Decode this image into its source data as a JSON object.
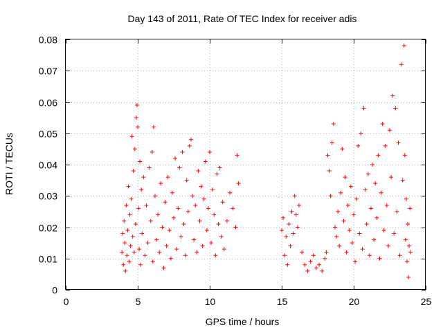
{
  "chart_data": {
    "type": "scatter",
    "title": "Day 143 of 2011, Rate Of TEC Index for receiver adis",
    "xlabel": "GPS time / hours",
    "ylabel": "ROTI / TECUs",
    "xlim": [
      0,
      25
    ],
    "ylim": [
      0,
      0.08
    ],
    "xticks": [
      0,
      5,
      10,
      15,
      20,
      25
    ],
    "yticks": [
      0,
      0.01,
      0.02,
      0.03,
      0.04,
      0.05,
      0.06,
      0.07,
      0.08
    ],
    "xtick_labels": [
      "0",
      "5",
      "10",
      "15",
      "20",
      "25"
    ],
    "ytick_labels": [
      "0",
      "0.01",
      "0.02",
      "0.03",
      "0.04",
      "0.05",
      "0.06",
      "0.07",
      "0.08"
    ],
    "grid": true,
    "marker": "+",
    "series_color": "#ff0000",
    "series": [
      {
        "name": "ROTI",
        "points": [
          [
            3.9,
            0.012
          ],
          [
            3.95,
            0.018
          ],
          [
            4.0,
            0.008
          ],
          [
            4.05,
            0.022
          ],
          [
            4.1,
            0.015
          ],
          [
            4.15,
            0.006
          ],
          [
            4.2,
            0.027
          ],
          [
            4.25,
            0.011
          ],
          [
            4.3,
            0.019
          ],
          [
            4.35,
            0.033
          ],
          [
            4.4,
            0.009
          ],
          [
            4.45,
            0.024
          ],
          [
            4.5,
            0.014
          ],
          [
            4.55,
            0.029
          ],
          [
            4.6,
            0.049
          ],
          [
            4.65,
            0.017
          ],
          [
            4.7,
            0.038
          ],
          [
            4.75,
            0.012
          ],
          [
            4.8,
            0.045
          ],
          [
            4.85,
            0.021
          ],
          [
            4.9,
            0.055
          ],
          [
            4.95,
            0.059
          ],
          [
            5.0,
            0.052
          ],
          [
            5.05,
            0.026
          ],
          [
            5.1,
            0.013
          ],
          [
            5.15,
            0.041
          ],
          [
            5.2,
            0.008
          ],
          [
            5.25,
            0.032
          ],
          [
            5.3,
            0.018
          ],
          [
            5.4,
            0.036
          ],
          [
            5.5,
            0.011
          ],
          [
            5.6,
            0.027
          ],
          [
            5.7,
            0.015
          ],
          [
            5.8,
            0.039
          ],
          [
            5.9,
            0.022
          ],
          [
            6.0,
            0.044
          ],
          [
            6.05,
            0.009
          ],
          [
            6.1,
            0.052
          ],
          [
            6.2,
            0.03
          ],
          [
            6.3,
            0.016
          ],
          [
            6.4,
            0.024
          ],
          [
            6.5,
            0.012
          ],
          [
            6.6,
            0.034
          ],
          [
            6.7,
            0.02
          ],
          [
            6.8,
            0.007
          ],
          [
            6.9,
            0.028
          ],
          [
            7.0,
            0.014
          ],
          [
            7.1,
            0.036
          ],
          [
            7.2,
            0.019
          ],
          [
            7.3,
            0.01
          ],
          [
            7.4,
            0.031
          ],
          [
            7.5,
            0.023
          ],
          [
            7.6,
            0.042
          ],
          [
            7.7,
            0.013
          ],
          [
            7.8,
            0.026
          ],
          [
            7.9,
            0.039
          ],
          [
            8.0,
            0.017
          ],
          [
            8.1,
            0.044
          ],
          [
            8.2,
            0.021
          ],
          [
            8.3,
            0.011
          ],
          [
            8.4,
            0.035
          ],
          [
            8.5,
            0.025
          ],
          [
            8.6,
            0.046
          ],
          [
            8.7,
            0.048
          ],
          [
            8.8,
            0.03
          ],
          [
            8.9,
            0.016
          ],
          [
            9.0,
            0.027
          ],
          [
            9.1,
            0.012
          ],
          [
            9.2,
            0.038
          ],
          [
            9.3,
            0.022
          ],
          [
            9.4,
            0.033
          ],
          [
            9.5,
            0.014
          ],
          [
            9.6,
            0.029
          ],
          [
            9.7,
            0.041
          ],
          [
            9.8,
            0.019
          ],
          [
            9.9,
            0.026
          ],
          [
            10.0,
            0.044
          ],
          [
            10.1,
            0.015
          ],
          [
            10.2,
            0.032
          ],
          [
            10.3,
            0.024
          ],
          [
            10.4,
            0.011
          ],
          [
            10.5,
            0.037
          ],
          [
            10.6,
            0.021
          ],
          [
            10.7,
            0.039
          ],
          [
            10.8,
            0.017
          ],
          [
            10.9,
            0.028
          ],
          [
            11.0,
            0.013
          ],
          [
            11.2,
            0.022
          ],
          [
            11.4,
            0.031
          ],
          [
            11.6,
            0.026
          ],
          [
            11.8,
            0.02
          ],
          [
            11.9,
            0.043
          ],
          [
            12.0,
            0.034
          ],
          [
            15.0,
            0.019
          ],
          [
            15.1,
            0.023
          ],
          [
            15.2,
            0.011
          ],
          [
            15.3,
            0.017
          ],
          [
            15.4,
            0.008
          ],
          [
            15.5,
            0.021
          ],
          [
            15.6,
            0.014
          ],
          [
            15.7,
            0.025
          ],
          [
            15.8,
            0.018
          ],
          [
            15.9,
            0.03
          ],
          [
            16.0,
            0.024
          ],
          [
            16.1,
            0.02
          ],
          [
            16.2,
            0.027
          ],
          [
            16.4,
            0.012
          ],
          [
            16.6,
            0.008
          ],
          [
            16.8,
            0.006
          ],
          [
            17.0,
            0.009
          ],
          [
            17.2,
            0.011
          ],
          [
            17.4,
            0.007
          ],
          [
            17.6,
            0.008
          ],
          [
            17.8,
            0.006
          ],
          [
            18.0,
            0.01
          ],
          [
            18.1,
            0.012
          ],
          [
            18.2,
            0.043
          ],
          [
            18.3,
            0.038
          ],
          [
            18.4,
            0.03
          ],
          [
            18.5,
            0.047
          ],
          [
            18.6,
            0.053
          ],
          [
            18.7,
            0.02
          ],
          [
            18.8,
            0.017
          ],
          [
            18.9,
            0.025
          ],
          [
            19.0,
            0.014
          ],
          [
            19.1,
            0.031
          ],
          [
            19.2,
            0.045
          ],
          [
            19.3,
            0.022
          ],
          [
            19.4,
            0.036
          ],
          [
            19.5,
            0.012
          ],
          [
            19.6,
            0.027
          ],
          [
            19.7,
            0.019
          ],
          [
            19.8,
            0.033
          ],
          [
            19.9,
            0.015
          ],
          [
            20.0,
            0.024
          ],
          [
            20.1,
            0.009
          ],
          [
            20.2,
            0.029
          ],
          [
            20.3,
            0.046
          ],
          [
            20.4,
            0.018
          ],
          [
            20.5,
            0.05
          ],
          [
            20.6,
            0.013
          ],
          [
            20.7,
            0.058
          ],
          [
            20.8,
            0.032
          ],
          [
            20.9,
            0.021
          ],
          [
            21.0,
            0.037
          ],
          [
            21.1,
            0.011
          ],
          [
            21.2,
            0.026
          ],
          [
            21.3,
            0.04
          ],
          [
            21.4,
            0.016
          ],
          [
            21.5,
            0.034
          ],
          [
            21.6,
            0.023
          ],
          [
            21.7,
            0.043
          ],
          [
            21.8,
            0.01
          ],
          [
            21.9,
            0.031
          ],
          [
            22.0,
            0.053
          ],
          [
            22.1,
            0.019
          ],
          [
            22.2,
            0.046
          ],
          [
            22.3,
            0.027
          ],
          [
            22.4,
            0.014
          ],
          [
            22.5,
            0.051
          ],
          [
            22.6,
            0.036
          ],
          [
            22.7,
            0.062
          ],
          [
            22.8,
            0.018
          ],
          [
            22.9,
            0.058
          ],
          [
            23.0,
            0.025
          ],
          [
            23.1,
            0.047
          ],
          [
            23.2,
            0.011
          ],
          [
            23.3,
            0.072
          ],
          [
            23.4,
            0.035
          ],
          [
            23.5,
            0.078
          ],
          [
            23.55,
            0.043
          ],
          [
            23.6,
            0.016
          ],
          [
            23.65,
            0.029
          ],
          [
            23.7,
            0.009
          ],
          [
            23.75,
            0.021
          ],
          [
            23.8,
            0.004
          ],
          [
            23.85,
            0.014
          ],
          [
            23.9,
            0.026
          ],
          [
            23.95,
            0.012
          ]
        ]
      }
    ]
  }
}
